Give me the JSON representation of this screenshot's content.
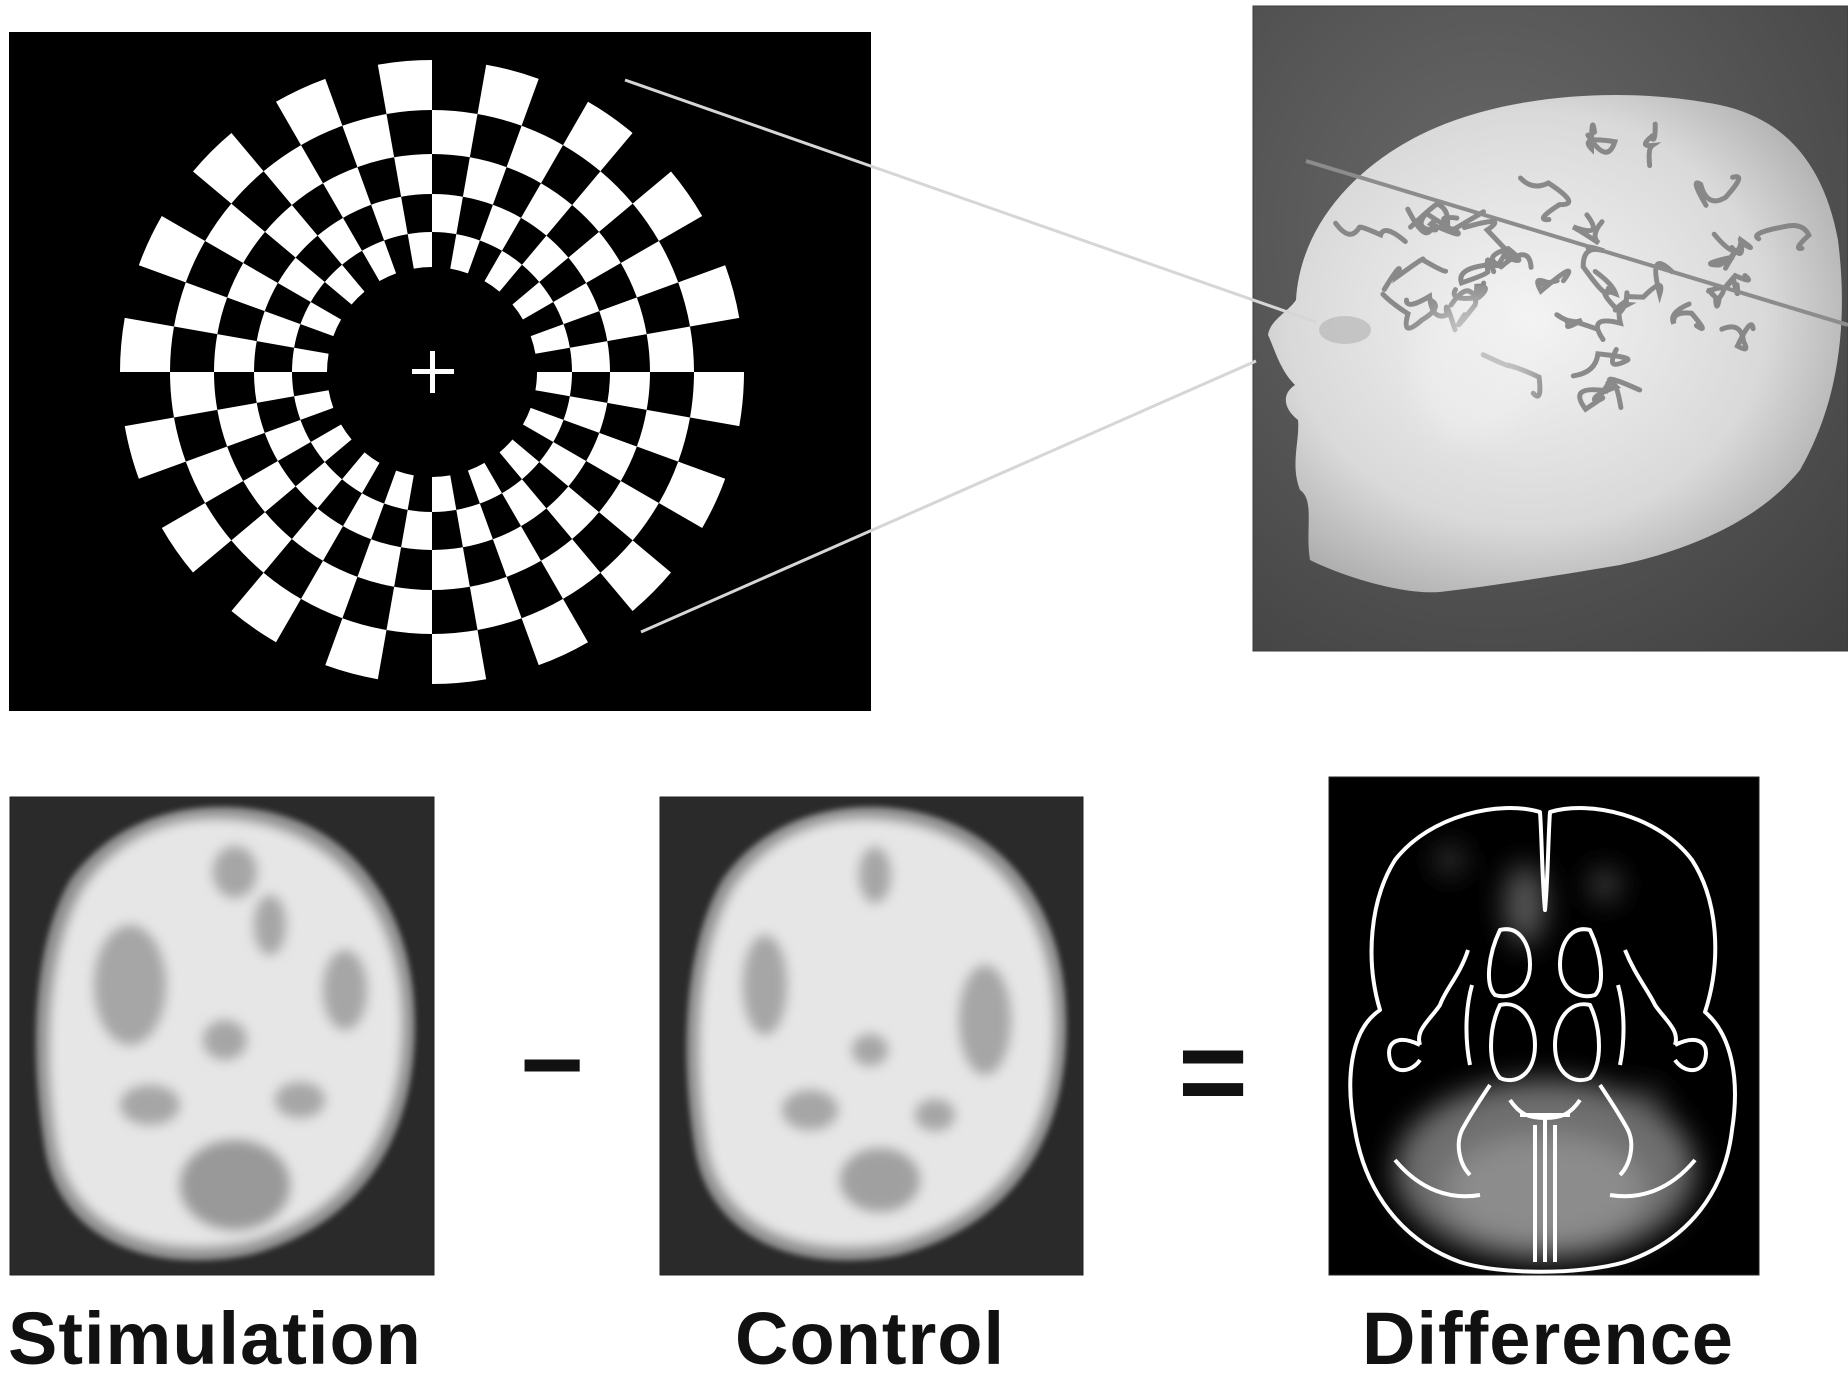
{
  "labels": {
    "stimulation": "Stimulation",
    "control": "Control",
    "difference": "Difference",
    "minus": "−",
    "equals": "="
  },
  "colors": {
    "background": "#ffffff",
    "panel": "#000000",
    "check_white": "#ffffff",
    "head_bg": "#555555",
    "scan_bg": "#2a2a2a",
    "scan_fill": "#e8e8e8",
    "scan_blob": "#a9a9a9",
    "outline": "#ffffff",
    "ray": "#d6d6d6"
  },
  "icons": {
    "fixation": "fixation-cross-icon"
  }
}
